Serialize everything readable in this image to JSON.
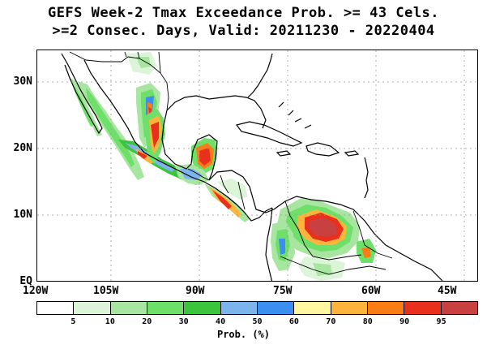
{
  "title": {
    "line1": "GEFS Week-2 Tmax Exceedance Prob. >= 43 Cels.",
    "line2": ">=2 Consec. Days, Valid: 20211230 - 20220404"
  },
  "map": {
    "lat_labels": [
      "30N",
      "20N",
      "10N",
      "EQ"
    ],
    "lon_labels": [
      "120W",
      "105W",
      "90W",
      "75W",
      "60W",
      "45W"
    ],
    "region": "Mexico, Central America, Caribbean, northern South America"
  },
  "colorbar": {
    "colors": [
      "#ffffff",
      "#dcf5d8",
      "#a8e5a0",
      "#6ee06a",
      "#3cc43c",
      "#7cb4ec",
      "#3c8ef0",
      "#fff8a0",
      "#fcb43c",
      "#f97c14",
      "#e8301c",
      "#c84040"
    ],
    "tick_labels": [
      "5",
      "10",
      "20",
      "30",
      "40",
      "50",
      "60",
      "70",
      "80",
      "90",
      "95"
    ],
    "units": "Prob. (%)"
  }
}
